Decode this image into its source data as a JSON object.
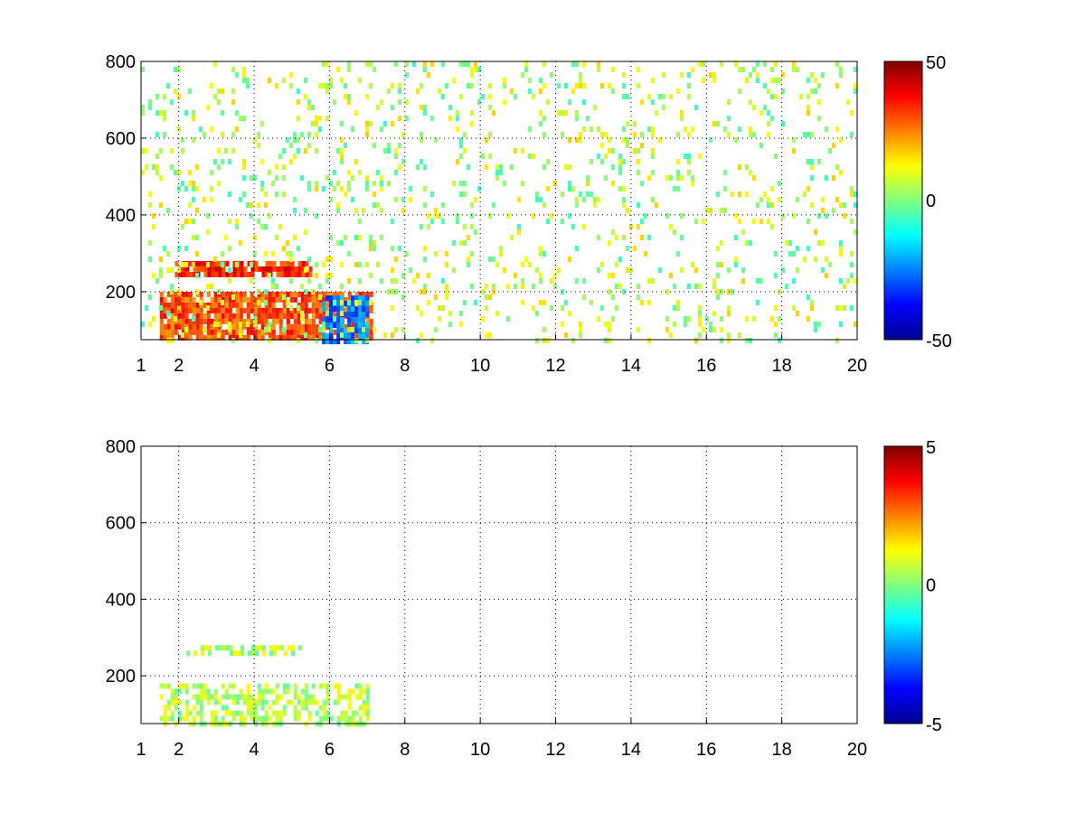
{
  "chart_data": [
    {
      "type": "heatmap",
      "xlim": [
        1,
        20
      ],
      "ylim": [
        75,
        800
      ],
      "xticks": [
        "1",
        "2",
        "4",
        "6",
        "8",
        "10",
        "12",
        "14",
        "16",
        "18",
        "20"
      ],
      "yticks": [
        "200",
        "400",
        "600",
        "800"
      ],
      "grid": true,
      "colormap": "jet",
      "colorbar": {
        "range": [
          -50,
          50
        ],
        "ticks": [
          "50",
          "0",
          "-50"
        ]
      },
      "regions": [
        {
          "x": [
            1.5,
            7.1
          ],
          "y": [
            75,
            200
          ],
          "dominant": "orange-red",
          "approx_value": 30
        },
        {
          "x": [
            1.9,
            5.5
          ],
          "y": [
            250,
            280
          ],
          "dominant": "orange-red",
          "approx_value": 35
        },
        {
          "x": [
            5.8,
            7.0
          ],
          "y": [
            75,
            190
          ],
          "dominant": "cyan-blue",
          "approx_value": -25
        },
        {
          "x": [
            1.0,
            20.0
          ],
          "y": [
            75,
            800
          ],
          "dominant": "green-yellow speckle",
          "approx_value": 5
        }
      ]
    },
    {
      "type": "heatmap",
      "xlim": [
        1,
        20
      ],
      "ylim": [
        75,
        800
      ],
      "xticks": [
        "1",
        "2",
        "4",
        "6",
        "8",
        "10",
        "12",
        "14",
        "16",
        "18",
        "20"
      ],
      "yticks": [
        "200",
        "400",
        "600",
        "800"
      ],
      "grid": true,
      "colormap": "jet",
      "colorbar": {
        "range": [
          -5,
          5
        ],
        "ticks": [
          "5",
          "0",
          "-5"
        ]
      },
      "regions": [
        {
          "x": [
            1.5,
            7.0
          ],
          "y": [
            75,
            180
          ],
          "dominant": "light green",
          "approx_value": 0.5
        },
        {
          "x": [
            2.2,
            5.2
          ],
          "y": [
            255,
            280
          ],
          "dominant": "light green",
          "approx_value": 0.5
        }
      ]
    }
  ]
}
